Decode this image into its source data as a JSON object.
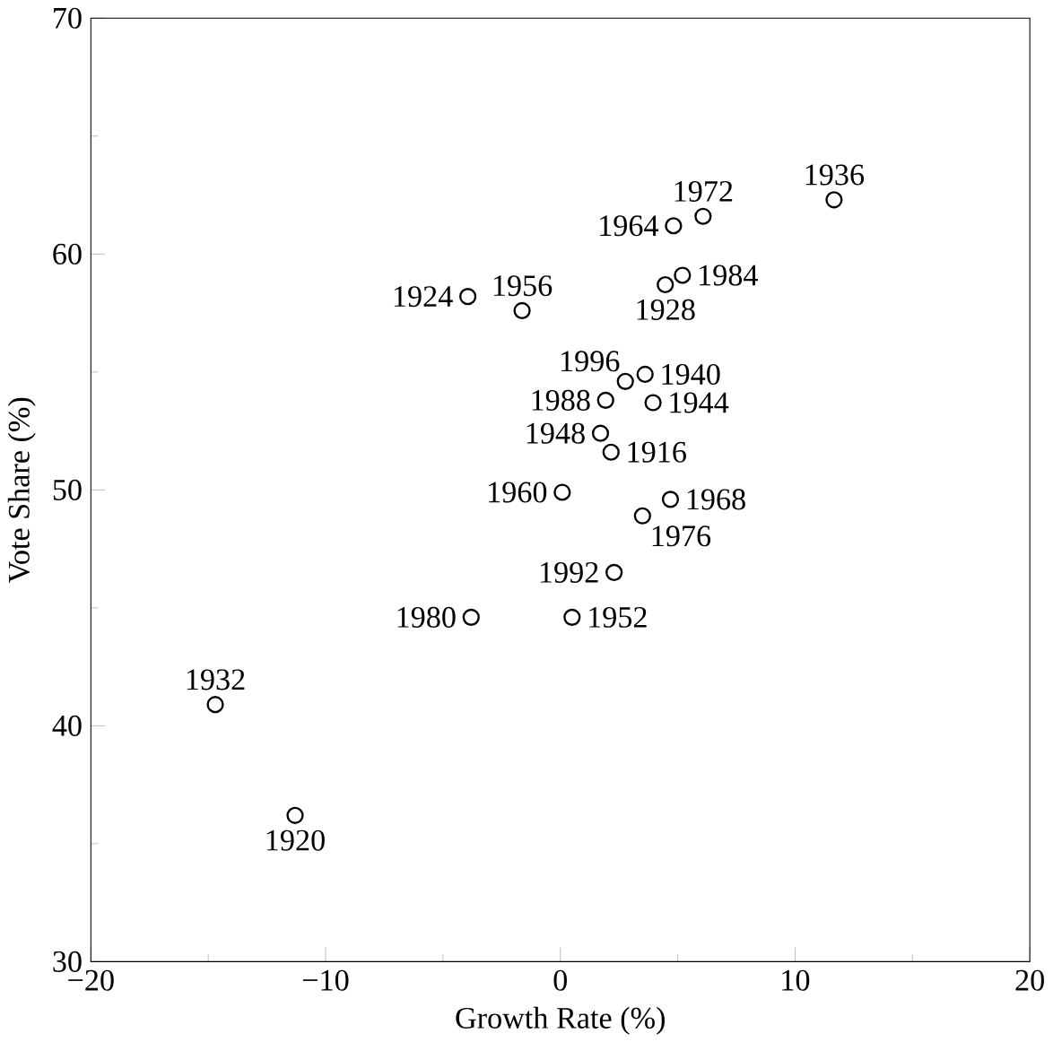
{
  "chart_data": {
    "type": "scatter",
    "xlabel": "Growth Rate (%)",
    "ylabel": "Vote Share (%)",
    "xlim": [
      -20,
      20
    ],
    "ylim": [
      30,
      70
    ],
    "xticks": [
      {
        "value": -20,
        "label": "−20"
      },
      {
        "value": -10,
        "label": "−10"
      },
      0,
      10,
      20
    ],
    "yticks": [
      30,
      40,
      50,
      60,
      70
    ],
    "grid": false,
    "marker": "circle",
    "series": [
      {
        "color": "#000000",
        "x": [
          2.16,
          -11.3,
          -3.94,
          4.47,
          -14.7,
          11.66,
          3.61,
          3.95,
          1.71,
          0.5,
          -1.63,
          0.08,
          4.82,
          4.69,
          6.08,
          3.5,
          -3.8,
          5.2,
          1.93,
          2.29,
          2.77
        ],
        "values": [
          51.6,
          36.2,
          58.2,
          58.7,
          40.9,
          62.3,
          54.9,
          53.7,
          52.4,
          44.6,
          57.6,
          49.9,
          61.2,
          49.6,
          61.6,
          48.9,
          44.6,
          59.1,
          53.8,
          46.5,
          54.6
        ]
      }
    ],
    "annotations": [
      {
        "text": "1916",
        "x": 2.16,
        "y": 51.6
      },
      {
        "text": "1920",
        "x": -11.3,
        "y": 36.2
      },
      {
        "text": "1924",
        "x": -3.94,
        "y": 58.2
      },
      {
        "text": "1928",
        "x": 4.47,
        "y": 58.7
      },
      {
        "text": "1932",
        "x": -14.7,
        "y": 40.9
      },
      {
        "text": "1936",
        "x": 11.66,
        "y": 62.3
      },
      {
        "text": "1940",
        "x": 3.61,
        "y": 54.9
      },
      {
        "text": "1944",
        "x": 3.95,
        "y": 53.7
      },
      {
        "text": "1948",
        "x": 1.71,
        "y": 52.4
      },
      {
        "text": "1952",
        "x": 0.5,
        "y": 44.6
      },
      {
        "text": "1956",
        "x": -1.63,
        "y": 57.6
      },
      {
        "text": "1960",
        "x": 0.08,
        "y": 49.9
      },
      {
        "text": "1964",
        "x": 4.82,
        "y": 61.2
      },
      {
        "text": "1968",
        "x": 4.69,
        "y": 49.6
      },
      {
        "text": "1972",
        "x": 6.08,
        "y": 61.6
      },
      {
        "text": "1976",
        "x": 3.5,
        "y": 48.9
      },
      {
        "text": "1980",
        "x": -3.8,
        "y": 44.6
      },
      {
        "text": "1984",
        "x": 5.2,
        "y": 59.1
      },
      {
        "text": "1988",
        "x": 1.93,
        "y": 53.8
      },
      {
        "text": "1992",
        "x": 2.29,
        "y": 46.5
      },
      {
        "text": "1996",
        "x": 2.77,
        "y": 54.6
      }
    ]
  }
}
